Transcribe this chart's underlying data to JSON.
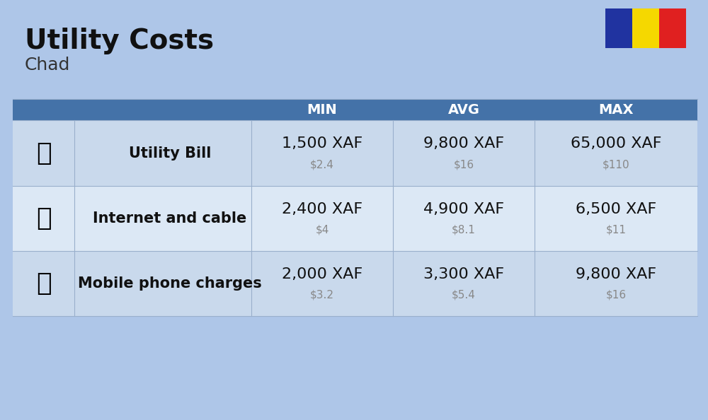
{
  "title": "Utility Costs",
  "subtitle": "Chad",
  "background_color": "#aec6e8",
  "header_bg_color": "#4472a8",
  "header_text_color": "#ffffff",
  "row_colors": [
    "#c9d9ec",
    "#dce8f5"
  ],
  "col_headers": [
    "MIN",
    "AVG",
    "MAX"
  ],
  "rows": [
    {
      "label": "Utility Bill",
      "min_xaf": "1,500 XAF",
      "min_usd": "$2.4",
      "avg_xaf": "9,800 XAF",
      "avg_usd": "$16",
      "max_xaf": "65,000 XAF",
      "max_usd": "$110"
    },
    {
      "label": "Internet and cable",
      "min_xaf": "2,400 XAF",
      "min_usd": "$4",
      "avg_xaf": "4,900 XAF",
      "avg_usd": "$8.1",
      "max_xaf": "6,500 XAF",
      "max_usd": "$11"
    },
    {
      "label": "Mobile phone charges",
      "min_xaf": "2,000 XAF",
      "min_usd": "$3.2",
      "avg_xaf": "3,300 XAF",
      "avg_usd": "$5.4",
      "max_xaf": "9,800 XAF",
      "max_usd": "$16"
    }
  ],
  "flag_colors": [
    "#2033a0",
    "#f5d800",
    "#e02020"
  ],
  "title_fontsize": 28,
  "subtitle_fontsize": 18,
  "header_fontsize": 14,
  "cell_xaf_fontsize": 16,
  "cell_usd_fontsize": 11,
  "label_fontsize": 15
}
